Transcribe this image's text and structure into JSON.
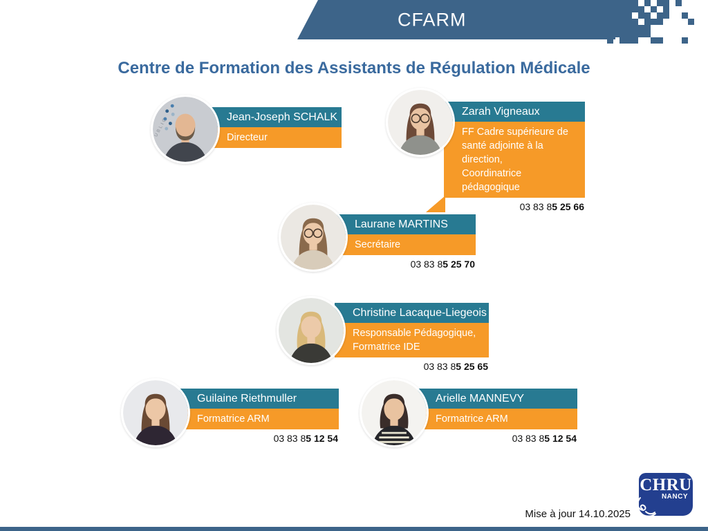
{
  "banner": {
    "label": "CFARM"
  },
  "title": "Centre de Formation des Assistants de Régulation Médicale",
  "people": [
    {
      "name": "Jean-Joseph SCHALK",
      "role": "Directeur",
      "phone_regular": "",
      "phone_bold": "",
      "avatar": {
        "bg": "#c9ccd1",
        "skin": "#e3b793",
        "hair": "#6b5a48",
        "top": "#41454d",
        "bald": true,
        "beard": true,
        "glasses": false,
        "hair_len": 0,
        "dots": true,
        "bg_text": "UBLIC",
        "stripes": false
      }
    },
    {
      "name": "Zarah Vigneaux",
      "role": "FF Cadre supérieure de\nsanté adjointe à la direction,\nCoordinatrice pédagogique",
      "phone_regular": "03 83 8",
      "phone_bold": "5 25 66",
      "avatar": {
        "bg": "#f1efec",
        "skin": "#e9c3a2",
        "hair": "#6d4a38",
        "top": "#8f918c",
        "bald": false,
        "beard": false,
        "glasses": true,
        "hair_len": 97,
        "dots": false,
        "bg_text": "",
        "stripes": false
      }
    },
    {
      "name": "Laurane MARTINS",
      "role": "Secrétaire",
      "phone_regular": "03 83 8",
      "phone_bold": "5 25 70",
      "avatar": {
        "bg": "#ebe8e3",
        "skin": "#ecc9a9",
        "hair": "#8a6a4c",
        "top": "#d8ccba",
        "bald": false,
        "beard": false,
        "glasses": true,
        "hair_len": 97,
        "dots": false,
        "bg_text": "",
        "stripes": false
      }
    },
    {
      "name": "Christine Lacaque-Liegeois",
      "role": "Responsable Pédagogique,\nFormatrice IDE",
      "phone_regular": "03 83 8",
      "phone_bold": "5 25 65",
      "avatar": {
        "bg": "#e3e5e1",
        "skin": "#eccaa9",
        "hair": "#d9b97a",
        "top": "#3a3a36",
        "bald": false,
        "beard": false,
        "glasses": false,
        "hair_len": 80,
        "dots": false,
        "bg_text": "",
        "stripes": false
      }
    },
    {
      "name": "Guilaine Riethmuller",
      "role": "Formatrice ARM",
      "phone_regular": "03 83 8",
      "phone_bold": "5 12 54",
      "avatar": {
        "bg": "#e8e9ec",
        "skin": "#ecc7a6",
        "hair": "#6a4a34",
        "top": "#2e2633",
        "bald": false,
        "beard": false,
        "glasses": false,
        "hair_len": 97,
        "dots": false,
        "bg_text": "",
        "stripes": false
      }
    },
    {
      "name": "Arielle MANNEVY",
      "role": "Formatrice ARM",
      "phone_regular": "03 83 8",
      "phone_bold": "5 12 54",
      "avatar": {
        "bg": "#f4f3f0",
        "skin": "#e9c3a0",
        "hair": "#3a2d2a",
        "top": "#26262a",
        "bald": false,
        "beard": false,
        "glasses": false,
        "hair_len": 74,
        "dots": false,
        "bg_text": "",
        "stripes": true
      }
    }
  ],
  "footer": {
    "updated": "Mise à jour 14.10.2025",
    "logo_line1": "CHRU",
    "logo_line2": "NANCY"
  },
  "colors": {
    "banner_blue": "#3d6489",
    "title_blue": "#3a6a9e",
    "name_bar_teal": "#287a92",
    "role_bar_orange": "#f69a28",
    "logo_navy": "#233f8f"
  }
}
